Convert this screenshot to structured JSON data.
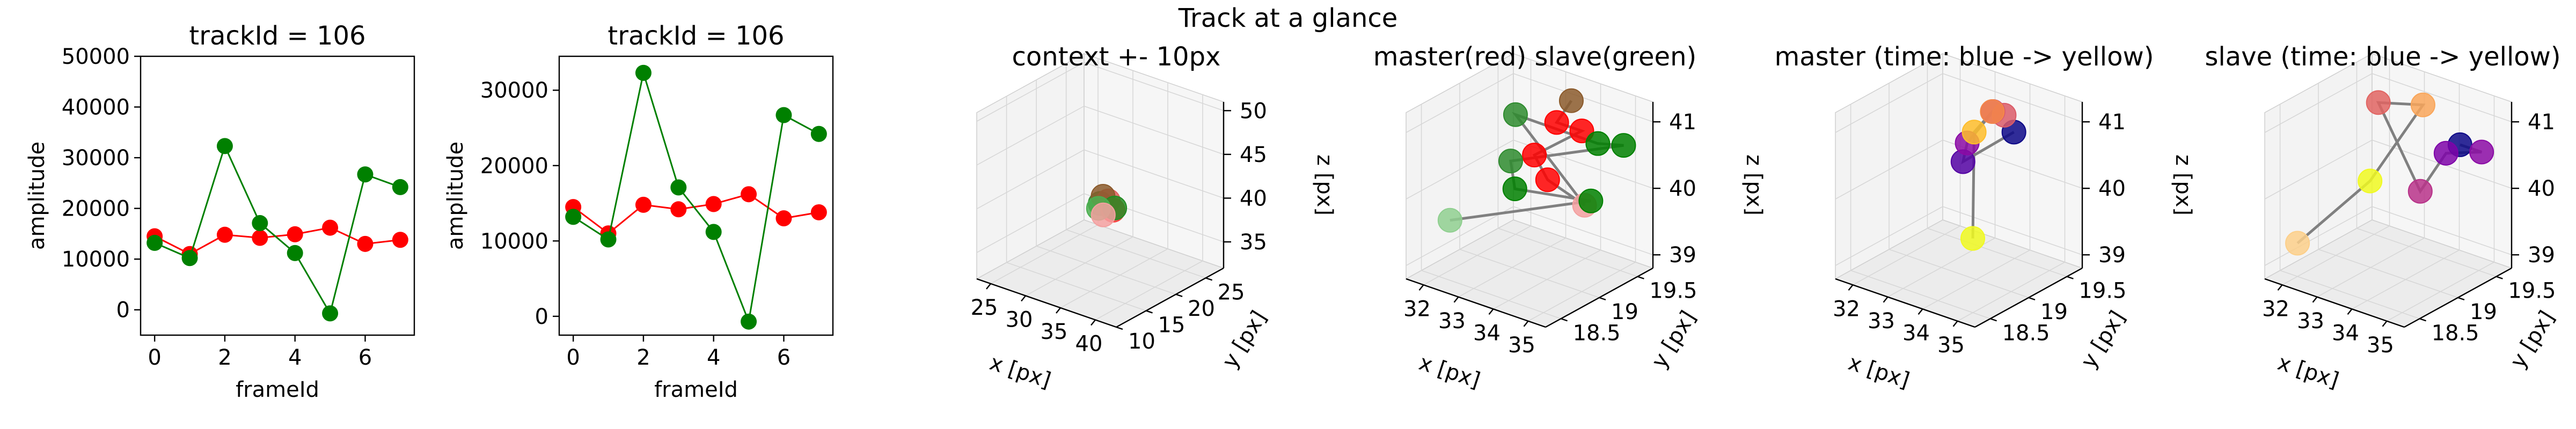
{
  "figure": {
    "suptitle": "Track at a glance"
  },
  "chart_data": [
    {
      "type": "line",
      "title": "trackId = 106",
      "xlabel": "frameId",
      "ylabel": "amplitude",
      "x": [
        0,
        1,
        2,
        3,
        4,
        5,
        6,
        7
      ],
      "xlim": [
        -0.4,
        7.4
      ],
      "ylim": [
        -5000,
        50000
      ],
      "xticks": [
        0,
        2,
        4,
        6
      ],
      "yticks": [
        0,
        10000,
        20000,
        30000,
        40000,
        50000
      ],
      "series": [
        {
          "color": "#ff0000",
          "values": [
            14500,
            11000,
            14800,
            14200,
            14900,
            16200,
            13000,
            13800
          ]
        },
        {
          "color": "#008000",
          "values": [
            13200,
            10200,
            32300,
            17100,
            11200,
            -700,
            26700,
            24200
          ]
        }
      ]
    },
    {
      "type": "line",
      "title": "trackId = 106",
      "xlabel": "frameId",
      "ylabel": "amplitude",
      "x": [
        0,
        1,
        2,
        3,
        4,
        5,
        6,
        7
      ],
      "xlim": [
        -0.4,
        7.4
      ],
      "ylim": [
        -2500,
        34500
      ],
      "xticks": [
        0,
        2,
        4,
        6
      ],
      "yticks": [
        0,
        10000,
        20000,
        30000
      ],
      "series": [
        {
          "color": "#ff0000",
          "values": [
            14500,
            11000,
            14800,
            14200,
            14900,
            16200,
            13000,
            13800
          ]
        },
        {
          "color": "#008000",
          "values": [
            13200,
            10200,
            32300,
            17100,
            11200,
            -700,
            26700,
            24200
          ]
        }
      ]
    },
    {
      "type": "scatter3d",
      "title": "context +- 10px",
      "xlabel": "x [px]",
      "ylabel": "y [px]",
      "zlabel": "z [px]",
      "xlim": [
        23,
        43
      ],
      "ylim": [
        10,
        28
      ],
      "zlim": [
        32,
        51
      ],
      "xticks": [
        25,
        30,
        35,
        40
      ],
      "yticks": [
        10,
        15,
        20,
        25
      ],
      "zticks": [
        35,
        40,
        45,
        50
      ],
      "points": [
        {
          "x": 33,
          "y": 19,
          "z": 40,
          "color": "#2e8b2e"
        },
        {
          "x": 34,
          "y": 19.2,
          "z": 40.5,
          "color": "#e06060"
        },
        {
          "x": 33.5,
          "y": 18.9,
          "z": 41,
          "color": "#8b5a2b"
        },
        {
          "x": 34.5,
          "y": 19.4,
          "z": 39.5,
          "color": "#ff4040"
        },
        {
          "x": 35,
          "y": 19.1,
          "z": 40,
          "color": "#228b22"
        },
        {
          "x": 32.5,
          "y": 19.3,
          "z": 39.2,
          "color": "#4caf50"
        },
        {
          "x": 33.7,
          "y": 18.7,
          "z": 39,
          "color": "#f4a0a0"
        }
      ]
    },
    {
      "type": "scatter3d",
      "title": "master(red) slave(green)",
      "xlabel": "x [px]",
      "ylabel": "y [px]",
      "zlabel": "z [px]",
      "xlim": [
        31.5,
        35.5
      ],
      "ylim": [
        18.3,
        19.7
      ],
      "zlim": [
        38.8,
        41.3
      ],
      "xticks": [
        32,
        33,
        34,
        35
      ],
      "yticks": [
        18.5,
        19.0,
        19.5
      ],
      "zticks": [
        39,
        40,
        41
      ],
      "line_color": "#808080",
      "points": [
        {
          "x": 33.6,
          "y": 19.5,
          "z": 41.1,
          "color": "#8b5a2b"
        },
        {
          "x": 33.4,
          "y": 19.4,
          "z": 40.8,
          "color": "#ff0000"
        },
        {
          "x": 33.9,
          "y": 19.5,
          "z": 40.7,
          "color": "#ff0000"
        },
        {
          "x": 33.2,
          "y": 19.2,
          "z": 40.4,
          "color": "#ff0000"
        },
        {
          "x": 33.8,
          "y": 19.1,
          "z": 40.2,
          "color": "#ff0000"
        },
        {
          "x": 34.2,
          "y": 19.4,
          "z": 39.7,
          "color": "#f4a0a0"
        },
        {
          "x": 32.0,
          "y": 19.5,
          "z": 40.6,
          "color": "#2e8b2e"
        },
        {
          "x": 34.8,
          "y": 19.3,
          "z": 40.8,
          "color": "#008000"
        },
        {
          "x": 35.1,
          "y": 19.5,
          "z": 40.7,
          "color": "#008000"
        },
        {
          "x": 33.4,
          "y": 18.8,
          "z": 40.6,
          "color": "#2e8b2e"
        },
        {
          "x": 33.3,
          "y": 18.9,
          "z": 40.1,
          "color": "#008000"
        },
        {
          "x": 34.6,
          "y": 19.3,
          "z": 39.9,
          "color": "#008000"
        },
        {
          "x": 32.1,
          "y": 18.6,
          "z": 39.6,
          "color": "#8fcf8f"
        }
      ]
    },
    {
      "type": "scatter3d",
      "title": "master (time: blue -> yellow)",
      "xlabel": "x [px]",
      "ylabel": "y [px]",
      "zlabel": "z [px]",
      "xlim": [
        31.5,
        35.5
      ],
      "ylim": [
        18.3,
        19.7
      ],
      "zlim": [
        38.8,
        41.3
      ],
      "xticks": [
        32,
        33,
        34,
        35
      ],
      "yticks": [
        18.5,
        19.0,
        19.5
      ],
      "zticks": [
        39,
        40,
        41
      ],
      "line_color": "#808080",
      "points": [
        {
          "x": 34.2,
          "y": 19.4,
          "z": 40.8,
          "color": "#0d0887"
        },
        {
          "x": 33.4,
          "y": 19.1,
          "z": 40.4,
          "color": "#5302a3"
        },
        {
          "x": 33.3,
          "y": 19.2,
          "z": 40.6,
          "color": "#8b0aa5"
        },
        {
          "x": 33.6,
          "y": 19.4,
          "z": 41.0,
          "color": "#b83289"
        },
        {
          "x": 33.7,
          "y": 19.5,
          "z": 40.9,
          "color": "#db5c68"
        },
        {
          "x": 33.8,
          "y": 19.3,
          "z": 41.1,
          "color": "#f48849"
        },
        {
          "x": 33.5,
          "y": 19.2,
          "z": 40.8,
          "color": "#febd2a"
        },
        {
          "x": 33.9,
          "y": 19.0,
          "z": 39.4,
          "color": "#f0f921"
        }
      ]
    },
    {
      "type": "scatter3d",
      "title": "slave (time: blue -> yellow)",
      "xlabel": "x [px]",
      "ylabel": "y [px]",
      "zlabel": "z [px]",
      "xlim": [
        31.5,
        35.5
      ],
      "ylim": [
        18.3,
        19.7
      ],
      "zlim": [
        38.8,
        41.3
      ],
      "xticks": [
        32,
        33,
        34,
        35
      ],
      "yticks": [
        18.5,
        19.0,
        19.5
      ],
      "zticks": [
        39,
        40,
        41
      ],
      "line_color": "#808080",
      "points": [
        {
          "x": 34.9,
          "y": 19.3,
          "z": 40.8,
          "color": "#0d0887"
        },
        {
          "x": 35.3,
          "y": 19.4,
          "z": 40.7,
          "color": "#8b0aa5"
        },
        {
          "x": 34.5,
          "y": 19.3,
          "z": 40.6,
          "color": "#7e03a8"
        },
        {
          "x": 34.2,
          "y": 19.1,
          "z": 40.1,
          "color": "#b83289"
        },
        {
          "x": 31.9,
          "y": 19.6,
          "z": 40.7,
          "color": "#e16462"
        },
        {
          "x": 33.4,
          "y": 19.5,
          "z": 41.0,
          "color": "#f9a65a"
        },
        {
          "x": 33.2,
          "y": 18.9,
          "z": 40.2,
          "color": "#f0f921"
        },
        {
          "x": 32.0,
          "y": 18.5,
          "z": 39.3,
          "color": "#fccf8a"
        }
      ]
    }
  ]
}
